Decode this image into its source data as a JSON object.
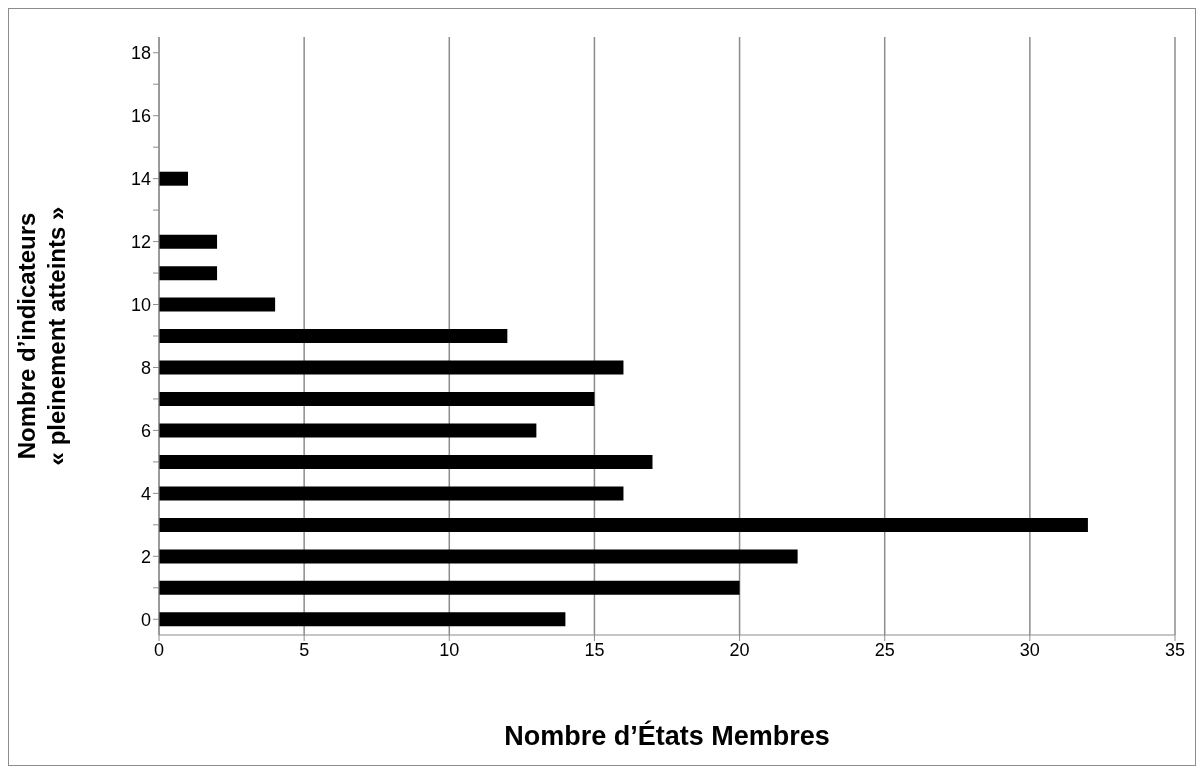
{
  "chart_data": {
    "type": "bar",
    "orientation": "horizontal",
    "xlabel": "Nombre d’États Membres",
    "ylabel": "Nombre d’indicateurs\n« pleinement atteints »",
    "categories": [
      "18",
      null,
      "16",
      null,
      "14",
      null,
      "12",
      null,
      "10",
      null,
      "8",
      null,
      "6",
      null,
      "4",
      null,
      "2",
      null,
      "0"
    ],
    "values": [
      0,
      0,
      0,
      0,
      1,
      0,
      2,
      2,
      4,
      12,
      16,
      15,
      13,
      17,
      16,
      32,
      22,
      20,
      14
    ],
    "color": "#000000",
    "xlim": [
      0,
      35
    ],
    "xticks": [
      0,
      5,
      10,
      15,
      20,
      25,
      30,
      35
    ],
    "grid": "x"
  }
}
